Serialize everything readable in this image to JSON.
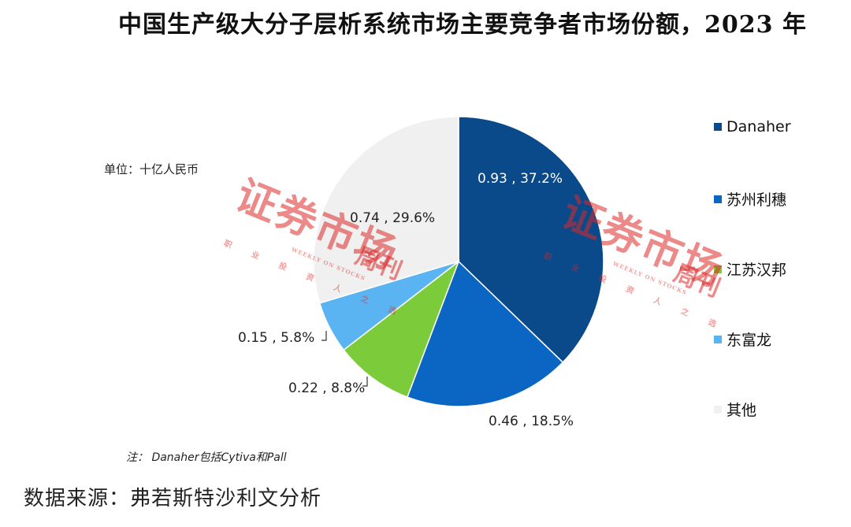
{
  "title": "中国生产级大分子层析系统市场主要竞争者市场份额，2023 年",
  "unit_label": "单位：十亿人民币",
  "note": "注： Danaher包括Cytiva和Pall",
  "source": "数据来源：弗若斯特沙利文分析",
  "watermark": {
    "main": "证券市场",
    "week": "周刊",
    "sub": "职 业 投 资 人 之 选",
    "en": "WEEKLY ON STOCKS"
  },
  "chart_data": {
    "type": "pie",
    "start_angle_deg": 90,
    "direction": "clockwise",
    "slices": [
      {
        "name": "Danaher",
        "value": 0.93,
        "percent": 37.2,
        "label": "0.93 , 37.2%",
        "color": "#0A4A8A"
      },
      {
        "name": "苏州利穗",
        "value": 0.46,
        "percent": 18.5,
        "label": "0.46 , 18.5%",
        "color": "#0A66C2"
      },
      {
        "name": "江苏汉邦",
        "value": 0.22,
        "percent": 8.8,
        "label": "0.22 , 8.8%",
        "color": "#7CCB3A"
      },
      {
        "name": "东富龙",
        "value": 0.15,
        "percent": 5.8,
        "label": "0.15 , 5.8%",
        "color": "#5AB4F2"
      },
      {
        "name": "其他",
        "value": 0.74,
        "percent": 29.6,
        "label": "0.74 , 29.6%",
        "color": "#F0F0F0"
      }
    ],
    "legend_position": "right"
  }
}
